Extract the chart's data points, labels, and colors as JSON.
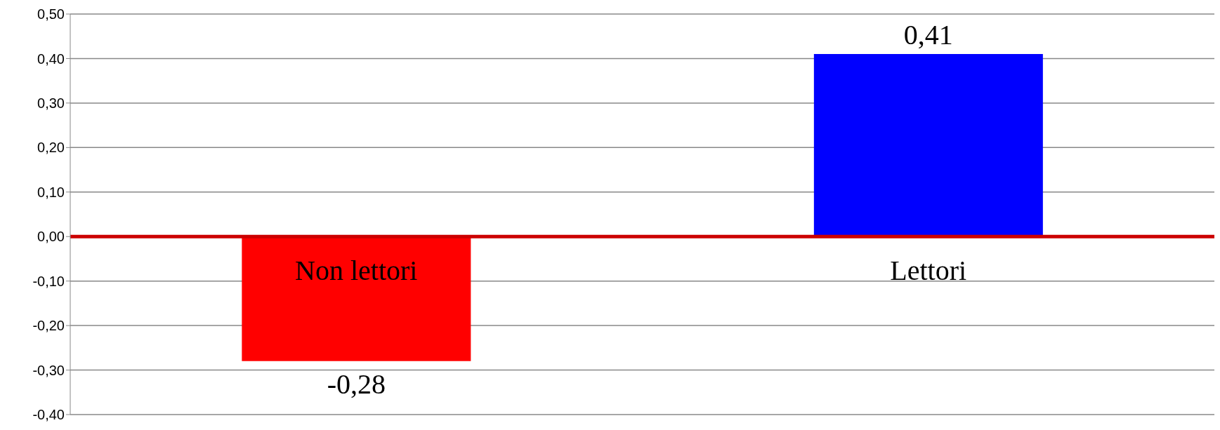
{
  "chart_data": {
    "type": "bar",
    "categories": [
      "Non lettori",
      "Lettori"
    ],
    "values": [
      -0.28,
      0.41
    ],
    "colors": [
      "#ff0000",
      "#0000ff"
    ],
    "value_labels": [
      "-0,28",
      "0,41"
    ],
    "ylim": [
      -0.4,
      0.5
    ],
    "yticks": [
      {
        "value": -0.4,
        "label": "-0,40"
      },
      {
        "value": -0.3,
        "label": "-0,30"
      },
      {
        "value": -0.2,
        "label": "-0,20"
      },
      {
        "value": -0.1,
        "label": "-0,10"
      },
      {
        "value": 0,
        "label": "0,00"
      },
      {
        "value": 0.1,
        "label": "0,10"
      },
      {
        "value": 0.2,
        "label": "0,20"
      },
      {
        "value": 0.3,
        "label": "0,30"
      },
      {
        "value": 0.4,
        "label": "0,40"
      },
      {
        "value": 0.5,
        "label": "0,50"
      }
    ],
    "grid": "y"
  }
}
